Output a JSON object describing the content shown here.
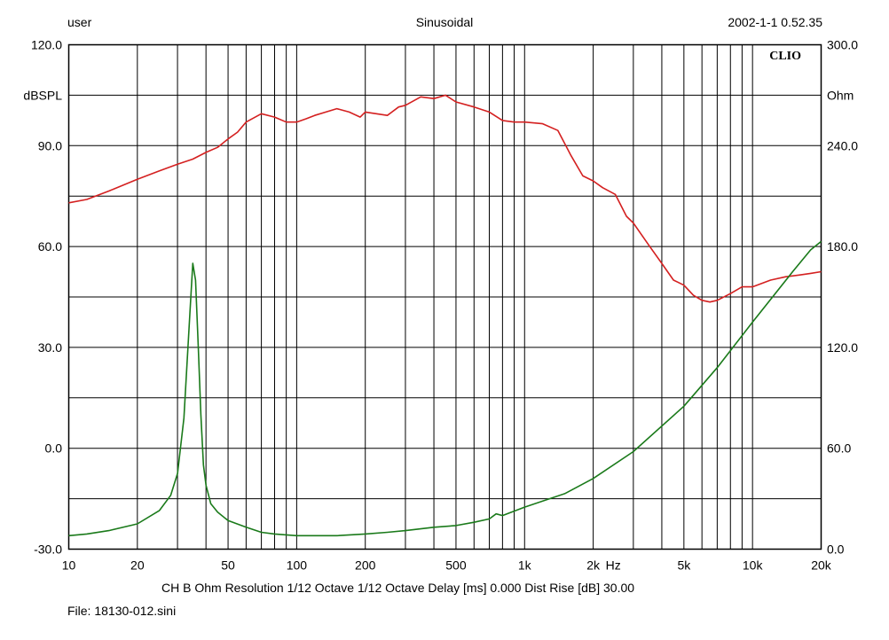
{
  "header": {
    "left": "user",
    "center": "Sinusoidal",
    "right": "2002-1-1 0.52.35"
  },
  "brand": "CLIO",
  "footer": {
    "settings": "CH B   Ohm   Resolution 1/12 Octave   1/12 Octave   Delay [ms] 0.000   Dist Rise [dB] 30.00",
    "file": "File: 18130-012.sini"
  },
  "colors": {
    "spl": "#d42020",
    "impedance": "#1a7a1a",
    "grid": "#000000"
  },
  "chart_data": {
    "type": "line",
    "x_scale": "log",
    "xlim": [
      10,
      20000
    ],
    "x_ticks": [
      {
        "v": 10,
        "label": "10"
      },
      {
        "v": 20,
        "label": "20"
      },
      {
        "v": 50,
        "label": "50"
      },
      {
        "v": 100,
        "label": "100"
      },
      {
        "v": 200,
        "label": "200"
      },
      {
        "v": 500,
        "label": "500"
      },
      {
        "v": 1000,
        "label": "1k"
      },
      {
        "v": 2000,
        "label": "2k"
      },
      {
        "v": 5000,
        "label": "5k"
      },
      {
        "v": 10000,
        "label": "10k"
      },
      {
        "v": 20000,
        "label": "20k"
      }
    ],
    "x_unit": "Hz",
    "y_left": {
      "label": "dBSPL",
      "lim": [
        -30,
        120
      ],
      "ticks": [
        {
          "v": -30,
          "label": "-30.0"
        },
        {
          "v": 0,
          "label": "0.0"
        },
        {
          "v": 30,
          "label": "30.0"
        },
        {
          "v": 60,
          "label": "60.0"
        },
        {
          "v": 90,
          "label": "90.0"
        },
        {
          "v": 120,
          "label": "120.0"
        }
      ]
    },
    "y_right": {
      "label": "Ohm",
      "lim": [
        0,
        300
      ],
      "ticks": [
        {
          "v": 0,
          "label": "0.0"
        },
        {
          "v": 60,
          "label": "60.0"
        },
        {
          "v": 120,
          "label": "120.0"
        },
        {
          "v": 180,
          "label": "180.0"
        },
        {
          "v": 240,
          "label": "240.0"
        },
        {
          "v": 300,
          "label": "300.0"
        }
      ]
    },
    "grid": true,
    "series": [
      {
        "axis": "left",
        "color": "#d42020",
        "x": [
          10,
          12,
          15,
          20,
          25,
          30,
          35,
          40,
          45,
          50,
          55,
          60,
          70,
          80,
          90,
          100,
          110,
          120,
          150,
          170,
          190,
          200,
          250,
          280,
          300,
          350,
          400,
          450,
          500,
          600,
          700,
          800,
          900,
          1000,
          1200,
          1400,
          1600,
          1800,
          2000,
          2200,
          2500,
          2800,
          3000,
          3500,
          4000,
          4500,
          5000,
          5500,
          6000,
          6500,
          7000,
          8000,
          9000,
          10000,
          12000,
          14000,
          16000,
          18000,
          20000
        ],
        "y": [
          73,
          74,
          76.5,
          80,
          82.5,
          84.5,
          86,
          88,
          89.5,
          92,
          94,
          97,
          99.5,
          98.5,
          97,
          97,
          98,
          99,
          101,
          100,
          98.5,
          100,
          99,
          101.5,
          102,
          104.5,
          104,
          105,
          103,
          101.5,
          100,
          97.5,
          97,
          97,
          96.5,
          94.5,
          87,
          81,
          79.5,
          77.5,
          75.5,
          69,
          67,
          60.5,
          55,
          50,
          48.5,
          45.5,
          44,
          43.5,
          44,
          46,
          48,
          48,
          50,
          51,
          51.5,
          52,
          52.5
        ]
      },
      {
        "axis": "right",
        "color": "#1a7a1a",
        "x": [
          10,
          12,
          15,
          20,
          25,
          28,
          30,
          32,
          34,
          35,
          36,
          37,
          38,
          39,
          40,
          42,
          45,
          50,
          60,
          70,
          80,
          100,
          150,
          200,
          250,
          300,
          400,
          500,
          600,
          700,
          750,
          800,
          1000,
          1500,
          2000,
          3000,
          5000,
          7000,
          10000,
          15000,
          18000,
          20000
        ],
        "y": [
          8,
          9,
          11,
          15,
          23,
          32,
          45,
          78,
          140,
          170,
          160,
          120,
          80,
          50,
          38,
          27,
          22,
          17,
          13,
          10,
          9,
          8,
          8,
          9,
          10,
          11,
          13,
          14,
          16,
          18,
          21,
          20,
          25,
          33,
          42,
          58,
          85,
          108,
          135,
          165,
          178,
          183
        ]
      }
    ]
  }
}
